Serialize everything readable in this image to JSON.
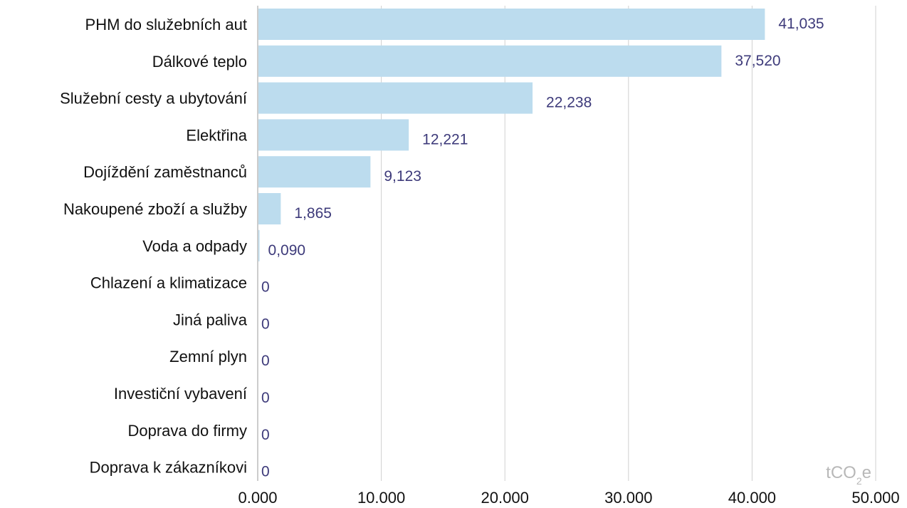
{
  "chart_data": {
    "type": "bar",
    "orientation": "horizontal",
    "categories": [
      "PHM do služebních aut",
      "Dálkové teplo",
      "Služební cesty a ubytování",
      "Elektřina",
      "Dojíždění zaměstnanců",
      "Nakoupené zboží a služby",
      "Voda a odpady",
      "Chlazení a klimatizace",
      "Jiná paliva",
      "Zemní plyn",
      "Investiční vybavení",
      "Doprava do firmy",
      "Doprava k zákazníkovi"
    ],
    "values": [
      41.035,
      37.52,
      22.238,
      12.221,
      9.123,
      1.865,
      0.09,
      0,
      0,
      0,
      0,
      0,
      0
    ],
    "data_labels": [
      "41,035",
      "37,520",
      "22,238",
      "12,221",
      "9,123",
      "1,865",
      "0,090",
      "0",
      "0",
      "0",
      "0",
      "0",
      "0"
    ],
    "xlim": [
      0,
      50
    ],
    "x_ticks": [
      0,
      10,
      20,
      30,
      40,
      50
    ],
    "x_tick_labels": [
      "0.000",
      "10.000",
      "20.000",
      "30.000",
      "40.000",
      "50.000"
    ],
    "unit": {
      "main": "tCO",
      "sub": "2",
      "suffix": "e"
    },
    "grid": "vertical",
    "colors": {
      "bar": "#bcdcee",
      "value_label": "#3d3a7a",
      "grid": "#d0d0d0",
      "axis": "#bcbcbc",
      "unit": "#b8b8b8"
    }
  }
}
